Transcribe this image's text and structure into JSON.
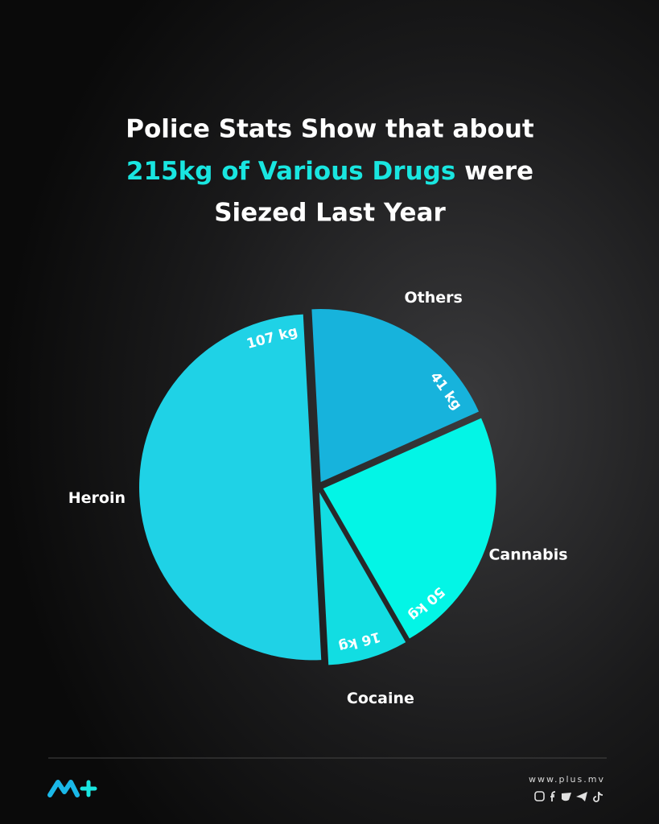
{
  "chart_data": {
    "type": "pie",
    "title": {
      "line1": "Police Stats Show that about",
      "highlight": "215kg of Various Drugs",
      "line2_rest": "were",
      "line3": "Siezed Last Year"
    },
    "categories": [
      "Others",
      "Cannabis",
      "Cocaine",
      "Heroin"
    ],
    "values": [
      41,
      50,
      16,
      107
    ],
    "value_labels": [
      "41 kg",
      "50 kg",
      "16 kg",
      "107 kg"
    ],
    "colors": [
      "#17b3dc",
      "#03f5e6",
      "#12dde2",
      "#1fd2e6"
    ]
  },
  "footer": {
    "url": "www.plus.mv"
  }
}
